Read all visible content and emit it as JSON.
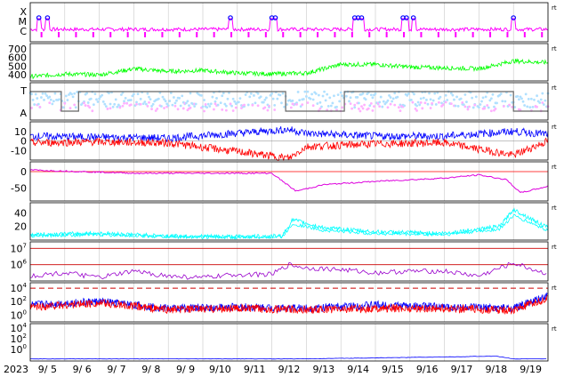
{
  "chart_data": {
    "type": "multi-panel-timeseries",
    "year_label": "2023",
    "x_ticks": [
      "9/ 5",
      "9/ 6",
      "9/ 7",
      "9/ 8",
      "9/ 9",
      "9/10",
      "9/11",
      "9/12",
      "9/13",
      "9/14",
      "9/15",
      "9/16",
      "9/17",
      "9/18",
      "9/19"
    ],
    "x_range": [
      "2023-09-04T12:00",
      "2023-09-19T12:00"
    ],
    "grid": true,
    "corner_marker": "rt",
    "panels": [
      {
        "id": "xray",
        "type": "event-line",
        "y_labels": [
          "X",
          "M",
          "C"
        ],
        "series_color": "#ff00ff",
        "event_marker_color": "#0000ff",
        "event_marker_days": [
          0.25,
          0.5,
          5.8,
          7.0,
          7.1,
          9.4,
          9.5,
          9.6,
          10.8,
          10.9,
          11.1,
          14.0
        ]
      },
      {
        "id": "wind-speed",
        "type": "line",
        "y_ticks": [
          400,
          500,
          600,
          700
        ],
        "y_range": [
          330,
          760
        ],
        "color": "#00ff00",
        "values": [
          [
            0,
            380
          ],
          [
            1,
            410
          ],
          [
            2,
            400
          ],
          [
            3,
            470
          ],
          [
            4,
            440
          ],
          [
            5,
            450
          ],
          [
            6,
            420
          ],
          [
            7,
            410
          ],
          [
            8,
            420
          ],
          [
            9,
            520
          ],
          [
            10,
            520
          ],
          [
            11,
            490
          ],
          [
            12,
            480
          ],
          [
            13,
            470
          ],
          [
            14,
            560
          ],
          [
            15,
            540
          ]
        ]
      },
      {
        "id": "sector",
        "type": "step",
        "y_labels": [
          "T",
          "A"
        ],
        "line_color": "#666666",
        "light_colors": [
          "#b0e0ff",
          "#ffb0ff"
        ],
        "state_segments": [
          [
            0,
            0.9,
            "T"
          ],
          [
            0.9,
            1.4,
            "A"
          ],
          [
            1.4,
            7.4,
            "T"
          ],
          [
            7.4,
            9.1,
            "A"
          ],
          [
            9.1,
            14.0,
            "T"
          ],
          [
            14.0,
            15.0,
            "A"
          ]
        ]
      },
      {
        "id": "imf-bz",
        "type": "line",
        "y_ticks": [
          10,
          0,
          -10
        ],
        "y_range": [
          -20,
          20
        ],
        "series": [
          {
            "name": "",
            "color": "#0000ff",
            "values": [
              [
                0,
                5
              ],
              [
                2,
                4
              ],
              [
                4,
                3
              ],
              [
                7.5,
                12
              ],
              [
                8,
                8
              ],
              [
                10,
                5
              ],
              [
                12,
                5
              ],
              [
                14,
                10
              ],
              [
                15,
                7
              ]
            ]
          },
          {
            "name": "",
            "color": "#ff0000",
            "values": [
              [
                0,
                -2
              ],
              [
                2,
                -1
              ],
              [
                4,
                -2
              ],
              [
                7.5,
                -18
              ],
              [
                8,
                -6
              ],
              [
                10,
                -3
              ],
              [
                12,
                -2
              ],
              [
                14,
                -15
              ],
              [
                15,
                0
              ]
            ]
          }
        ]
      },
      {
        "id": "dst",
        "type": "line",
        "y_ticks": [
          0,
          -50
        ],
        "y_range": [
          -90,
          30
        ],
        "reference_line_color": "#ff0000",
        "color": "#dd00dd",
        "values": [
          [
            0,
            5
          ],
          [
            3,
            -5
          ],
          [
            6,
            -5
          ],
          [
            7,
            -5
          ],
          [
            7.7,
            -60
          ],
          [
            8.5,
            -40
          ],
          [
            10,
            -30
          ],
          [
            12,
            -20
          ],
          [
            13,
            -10
          ],
          [
            13.8,
            -25
          ],
          [
            14.2,
            -65
          ],
          [
            15,
            -45
          ]
        ]
      },
      {
        "id": "kp-related",
        "type": "line",
        "y_ticks": [
          20,
          40
        ],
        "y_range": [
          0,
          55
        ],
        "color": "#00ffff",
        "values": [
          [
            0,
            8
          ],
          [
            2,
            10
          ],
          [
            4,
            6
          ],
          [
            6,
            5
          ],
          [
            7.3,
            6
          ],
          [
            7.6,
            30
          ],
          [
            8.5,
            18
          ],
          [
            10,
            12
          ],
          [
            12,
            10
          ],
          [
            13.6,
            20
          ],
          [
            14.0,
            45
          ],
          [
            15,
            18
          ]
        ]
      },
      {
        "id": "electron-flux",
        "type": "line",
        "log_scale": true,
        "y_ticks": [
          "10^6",
          "10^7"
        ],
        "threshold_color": "#cc0000",
        "color": "#9900cc",
        "values": [
          [
            0,
            5.3
          ],
          [
            1,
            5.5
          ],
          [
            2,
            5.2
          ],
          [
            3,
            5.6
          ],
          [
            4,
            5.3
          ],
          [
            5,
            5.2
          ],
          [
            6,
            5.4
          ],
          [
            7,
            5.4
          ],
          [
            7.5,
            6.0
          ],
          [
            8,
            5.8
          ],
          [
            9,
            5.7
          ],
          [
            10,
            5.5
          ],
          [
            11,
            5.6
          ],
          [
            12,
            5.6
          ],
          [
            13,
            5.3
          ],
          [
            14,
            6.1
          ],
          [
            15,
            5.4
          ]
        ]
      },
      {
        "id": "proton-flux",
        "type": "line",
        "log_scale": true,
        "y_ticks": [
          "10^0",
          "10^2",
          "10^4"
        ],
        "threshold_color": "#cc0000",
        "series": [
          {
            "name": "",
            "color": "#0000ff",
            "values": [
              [
                0,
                1.5
              ],
              [
                2,
                2.0
              ],
              [
                4,
                1.0
              ],
              [
                6,
                1.2
              ],
              [
                8,
                1.0
              ],
              [
                10,
                1.5
              ],
              [
                12,
                1.2
              ],
              [
                14,
                1.0
              ],
              [
                15,
                2.8
              ]
            ]
          },
          {
            "name": "",
            "color": "#ff0000",
            "values": [
              [
                0,
                1.2
              ],
              [
                2,
                1.8
              ],
              [
                4,
                0.8
              ],
              [
                6,
                1.0
              ],
              [
                8,
                0.8
              ],
              [
                10,
                1.0
              ],
              [
                12,
                1.0
              ],
              [
                14,
                0.7
              ],
              [
                15,
                2.5
              ]
            ]
          }
        ]
      },
      {
        "id": "high-energy-proton",
        "type": "line",
        "log_scale": true,
        "y_ticks": [
          "10^0",
          "10^2",
          "10^4"
        ],
        "color": "#0000ff",
        "values": [
          [
            0,
            -1.8
          ],
          [
            4,
            -1.8
          ],
          [
            8,
            -1.8
          ],
          [
            13.5,
            -1.3
          ],
          [
            14,
            -1.8
          ],
          [
            15,
            -1.8
          ]
        ]
      }
    ]
  }
}
